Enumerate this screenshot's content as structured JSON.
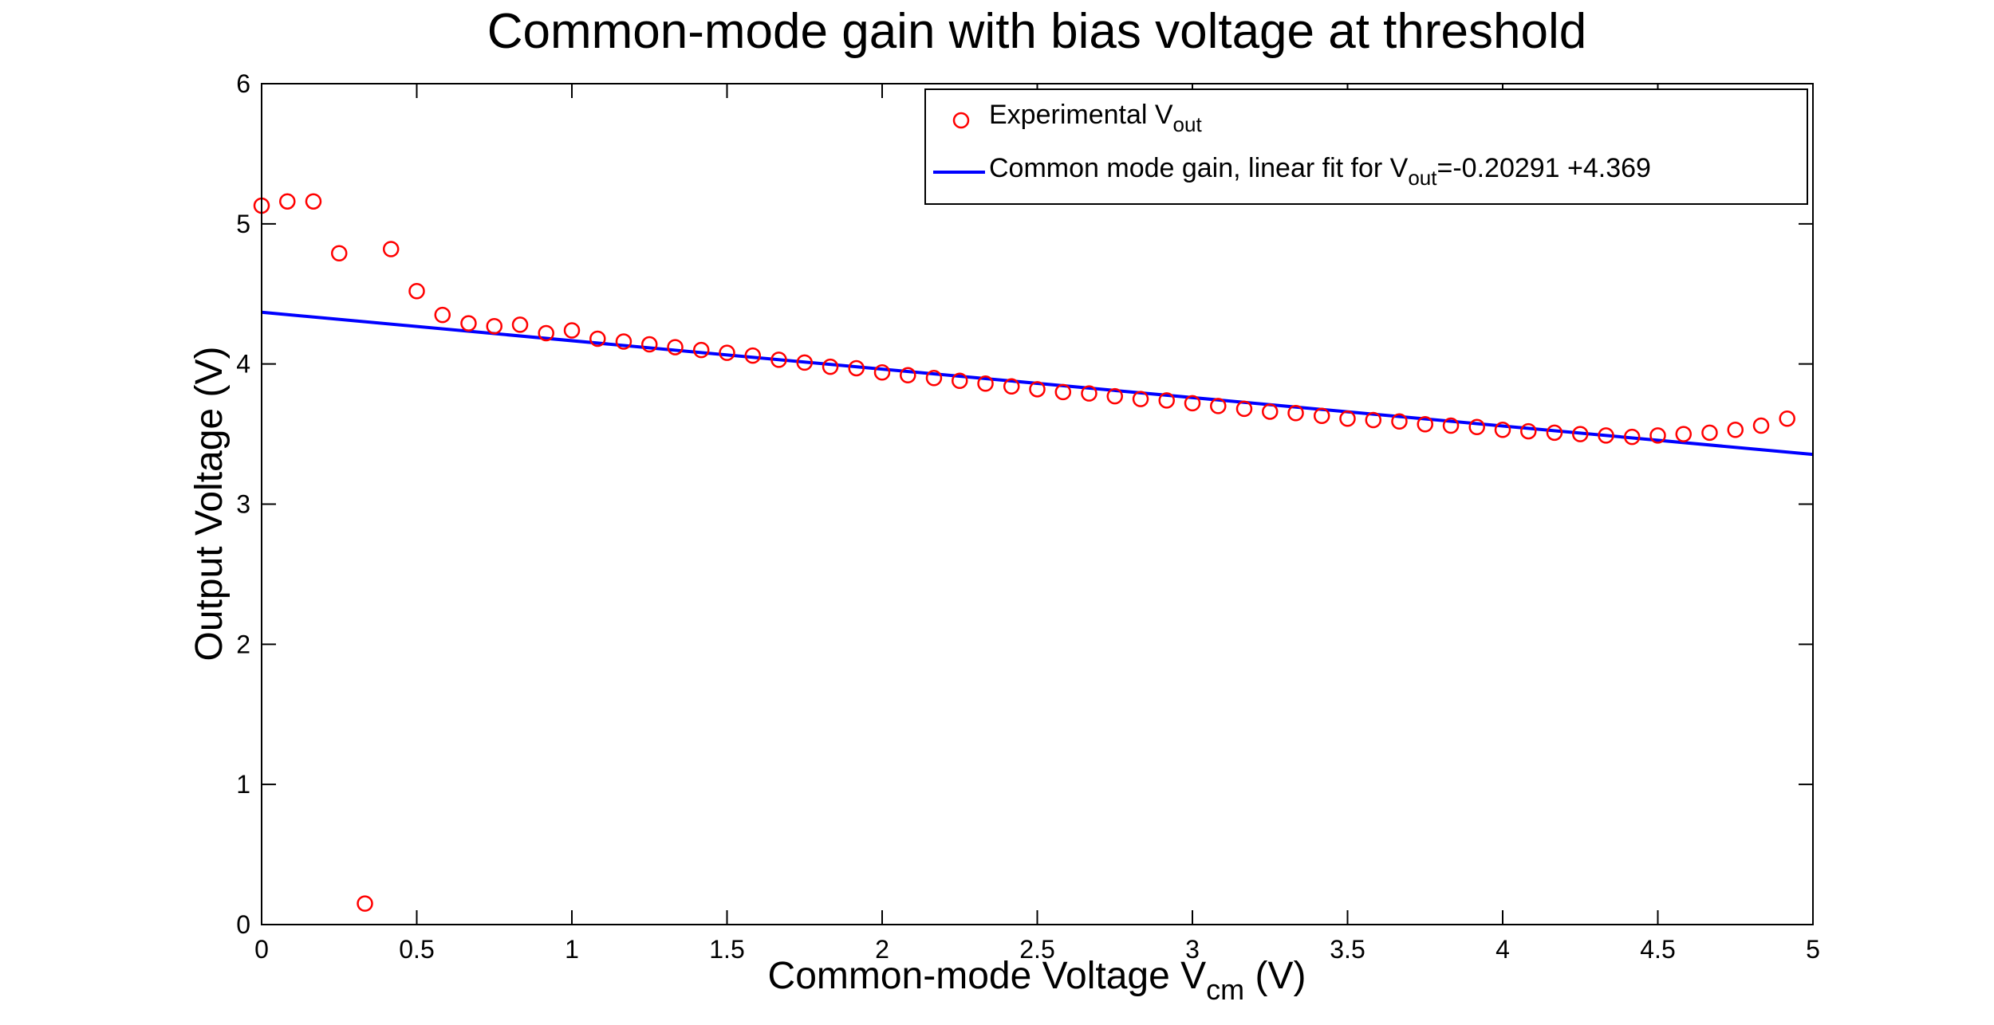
{
  "chart_data": {
    "type": "scatter",
    "title": "Common-mode gain with bias voltage at threshold",
    "xlabel": {
      "main": "Common-mode Voltage V",
      "sub": "cm",
      "tail": " (V)"
    },
    "ylabel": "Output Voltage (V)",
    "xlim": [
      0,
      5
    ],
    "ylim": [
      0,
      6
    ],
    "xticks": [
      0,
      0.5,
      1,
      1.5,
      2,
      2.5,
      3,
      3.5,
      4,
      4.5,
      5
    ],
    "xtick_labels": [
      "0",
      "0.5",
      "1",
      "1.5",
      "2",
      "2.5",
      "3",
      "3.5",
      "4",
      "4.5",
      "5"
    ],
    "yticks": [
      0,
      1,
      2,
      3,
      4,
      5,
      6
    ],
    "ytick_labels": [
      "0",
      "1",
      "2",
      "3",
      "4",
      "5",
      "6"
    ],
    "grid": false,
    "legend_position": "top-right",
    "series": [
      {
        "kind": "markers",
        "marker": "circle",
        "color": "#ff0000",
        "legend": {
          "main": "Experimental V",
          "sub": "out",
          "tail": ""
        },
        "x": [
          0.0,
          0.083,
          0.167,
          0.25,
          0.333,
          0.417,
          0.5,
          0.583,
          0.667,
          0.75,
          0.833,
          0.917,
          1.0,
          1.083,
          1.167,
          1.25,
          1.333,
          1.417,
          1.5,
          1.583,
          1.667,
          1.75,
          1.833,
          1.917,
          2.0,
          2.083,
          2.167,
          2.25,
          2.333,
          2.417,
          2.5,
          2.583,
          2.667,
          2.75,
          2.833,
          2.917,
          3.0,
          3.083,
          3.167,
          3.25,
          3.333,
          3.417,
          3.5,
          3.583,
          3.667,
          3.75,
          3.833,
          3.917,
          4.0,
          4.083,
          4.167,
          4.25,
          4.333,
          4.417,
          4.5,
          4.583,
          4.667,
          4.75,
          4.833,
          4.917
        ],
        "y": [
          5.13,
          5.16,
          5.16,
          4.79,
          0.15,
          4.82,
          4.52,
          4.35,
          4.29,
          4.27,
          4.28,
          4.22,
          4.24,
          4.18,
          4.16,
          4.14,
          4.12,
          4.1,
          4.08,
          4.06,
          4.03,
          4.01,
          3.98,
          3.97,
          3.94,
          3.92,
          3.9,
          3.88,
          3.86,
          3.84,
          3.82,
          3.8,
          3.79,
          3.77,
          3.75,
          3.74,
          3.72,
          3.7,
          3.68,
          3.66,
          3.65,
          3.63,
          3.61,
          3.6,
          3.59,
          3.57,
          3.56,
          3.55,
          3.53,
          3.52,
          3.51,
          3.5,
          3.49,
          3.48,
          3.49,
          3.5,
          3.51,
          3.53,
          3.56,
          3.61
        ]
      },
      {
        "kind": "line",
        "color": "#0000ff",
        "legend": {
          "main": "Common mode gain, linear fit for V",
          "sub": "out",
          "tail": "=-0.20291 +4.369"
        },
        "slope": -0.20291,
        "intercept": 4.369,
        "x_range": [
          0,
          5
        ]
      }
    ]
  }
}
